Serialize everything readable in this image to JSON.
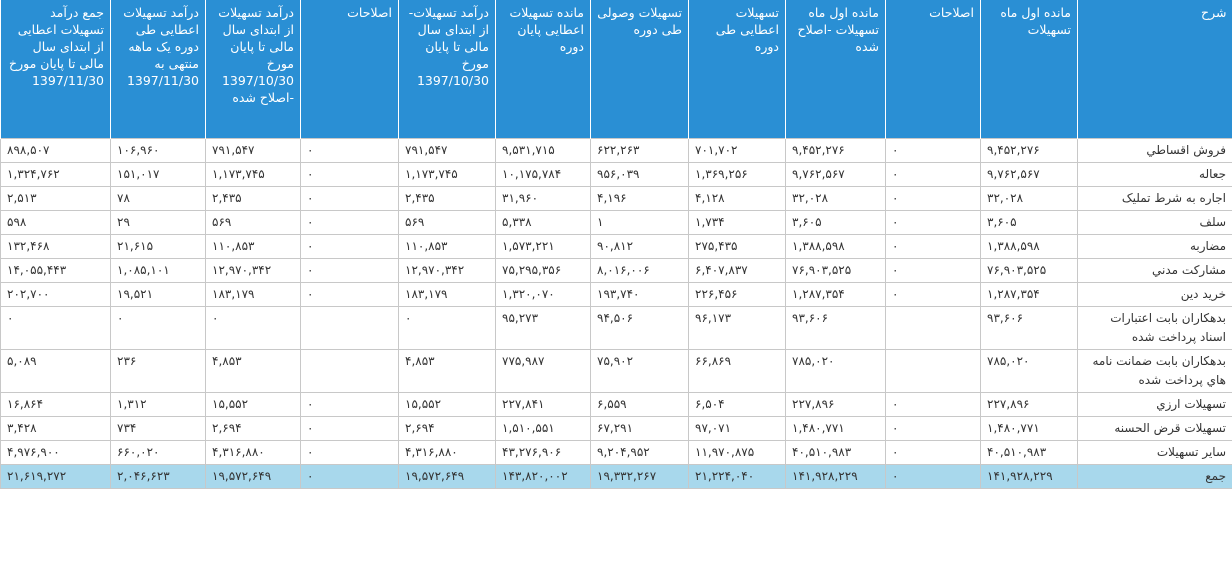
{
  "table": {
    "headers": [
      "شرح",
      "مانده اول ماه تسهیلات",
      "اصلاحات",
      "مانده اول ماه تسهیلات -اصلاح شده",
      "تسهیلات اعطایی طی دوره",
      "تسهیلات وصولی طی دوره",
      "مانده تسهیلات اعطایی پایان دوره",
      "درآمد تسهیلات-از ابتدای سال مالی تا پایان مورخ 1397/10/30",
      "اصلاحات",
      "درآمد تسهیلات از ابتدای سال مالی تا پایان مورخ 1397/10/30 -اصلاح شده",
      "درآمد تسهیلات اعطایی طی دوره یک ماهه منتهی به 1397/11/30",
      "جمع درآمد تسهیلات اعطایی از ابتدای سال مالی تا پایان مورخ 1397/11/30"
    ],
    "rows": [
      [
        "فروش اقساطي",
        "۹,۴۵۲,۲۷۶",
        "۰",
        "۹,۴۵۲,۲۷۶",
        "۷۰۱,۷۰۲",
        "۶۲۲,۲۶۳",
        "۹,۵۳۱,۷۱۵",
        "۷۹۱,۵۴۷",
        "۰",
        "۷۹۱,۵۴۷",
        "۱۰۶,۹۶۰",
        "۸۹۸,۵۰۷"
      ],
      [
        "جعاله",
        "۹,۷۶۲,۵۶۷",
        "۰",
        "۹,۷۶۲,۵۶۷",
        "۱,۳۶۹,۲۵۶",
        "۹۵۶,۰۳۹",
        "۱۰,۱۷۵,۷۸۴",
        "۱,۱۷۳,۷۴۵",
        "۰",
        "۱,۱۷۳,۷۴۵",
        "۱۵۱,۰۱۷",
        "۱,۳۲۴,۷۶۲"
      ],
      [
        "اجاره به شرط تمليک",
        "۳۲,۰۲۸",
        "۰",
        "۳۲,۰۲۸",
        "۴,۱۲۸",
        "۴,۱۹۶",
        "۳۱,۹۶۰",
        "۲,۴۳۵",
        "۰",
        "۲,۴۳۵",
        "۷۸",
        "۲,۵۱۳"
      ],
      [
        "سلف",
        "۳,۶۰۵",
        "۰",
        "۳,۶۰۵",
        "۱,۷۳۴",
        "۱",
        "۵,۳۳۸",
        "۵۶۹",
        "۰",
        "۵۶۹",
        "۲۹",
        "۵۹۸"
      ],
      [
        "مضاربه",
        "۱,۳۸۸,۵۹۸",
        "۰",
        "۱,۳۸۸,۵۹۸",
        "۲۷۵,۴۳۵",
        "۹۰,۸۱۲",
        "۱,۵۷۳,۲۲۱",
        "۱۱۰,۸۵۳",
        "۰",
        "۱۱۰,۸۵۳",
        "۲۱,۶۱۵",
        "۱۳۲,۴۶۸"
      ],
      [
        "مشارکت مدني",
        "۷۶,۹۰۳,۵۲۵",
        "۰",
        "۷۶,۹۰۳,۵۲۵",
        "۶,۴۰۷,۸۳۷",
        "۸,۰۱۶,۰۰۶",
        "۷۵,۲۹۵,۳۵۶",
        "۱۲,۹۷۰,۳۴۲",
        "۰",
        "۱۲,۹۷۰,۳۴۲",
        "۱,۰۸۵,۱۰۱",
        "۱۴,۰۵۵,۴۴۳"
      ],
      [
        "خريد دين",
        "۱,۲۸۷,۳۵۴",
        "۰",
        "۱,۲۸۷,۳۵۴",
        "۲۲۶,۴۵۶",
        "۱۹۳,۷۴۰",
        "۱,۳۲۰,۰۷۰",
        "۱۸۳,۱۷۹",
        "۰",
        "۱۸۳,۱۷۹",
        "۱۹,۵۲۱",
        "۲۰۲,۷۰۰"
      ],
      [
        "بدهکاران بابت اعتبارات اسناد پرداخت شده",
        "۹۳,۶۰۶",
        null,
        "۹۳,۶۰۶",
        "۹۶,۱۷۳",
        "۹۴,۵۰۶",
        "۹۵,۲۷۳",
        "۰",
        null,
        "۰",
        "۰",
        "۰"
      ],
      [
        "بدهکاران بابت ضمانت نامه هاي پرداخت شده",
        "۷۸۵,۰۲۰",
        null,
        "۷۸۵,۰۲۰",
        "۶۶,۸۶۹",
        "۷۵,۹۰۲",
        "۷۷۵,۹۸۷",
        "۴,۸۵۳",
        null,
        "۴,۸۵۳",
        "۲۳۶",
        "۵,۰۸۹"
      ],
      [
        "تسهيلات ارزي",
        "۲۲۷,۸۹۶",
        "۰",
        "۲۲۷,۸۹۶",
        "۶,۵۰۴",
        "۶,۵۵۹",
        "۲۲۷,۸۴۱",
        "۱۵,۵۵۲",
        "۰",
        "۱۵,۵۵۲",
        "۱,۳۱۲",
        "۱۶,۸۶۴"
      ],
      [
        "تسهيلات قرض الحسنه",
        "۱,۴۸۰,۷۷۱",
        "۰",
        "۱,۴۸۰,۷۷۱",
        "۹۷,۰۷۱",
        "۶۷,۲۹۱",
        "۱,۵۱۰,۵۵۱",
        "۲,۶۹۴",
        "۰",
        "۲,۶۹۴",
        "۷۳۴",
        "۳,۴۲۸"
      ],
      [
        "ساير تسهيلات",
        "۴۰,۵۱۰,۹۸۳",
        "۰",
        "۴۰,۵۱۰,۹۸۳",
        "۱۱,۹۷۰,۸۷۵",
        "۹,۲۰۴,۹۵۲",
        "۴۳,۲۷۶,۹۰۶",
        "۴,۳۱۶,۸۸۰",
        "۰",
        "۴,۳۱۶,۸۸۰",
        "۶۶۰,۰۲۰",
        "۴,۹۷۶,۹۰۰"
      ]
    ],
    "total": [
      "جمع",
      "۱۴۱,۹۲۸,۲۲۹",
      "۰",
      "۱۴۱,۹۲۸,۲۲۹",
      "۲۱,۲۲۴,۰۴۰",
      "۱۹,۳۳۲,۲۶۷",
      "۱۴۳,۸۲۰,۰۰۲",
      "۱۹,۵۷۲,۶۴۹",
      "۰",
      "۱۹,۵۷۲,۶۴۹",
      "۲,۰۴۶,۶۲۳",
      "۲۱,۶۱۹,۲۷۲"
    ]
  }
}
